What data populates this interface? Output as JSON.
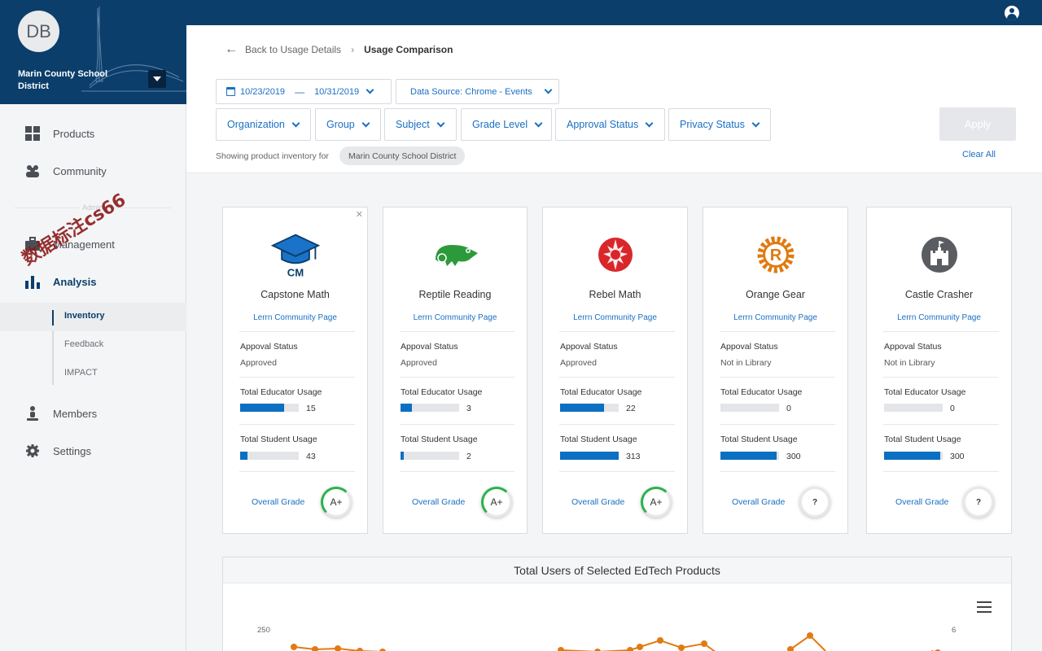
{
  "header": {
    "user_icon": "account-circle-icon"
  },
  "org": {
    "initials": "DB",
    "name": "Marin County School District"
  },
  "nav": {
    "products": "Products",
    "community": "Community",
    "admin": "Admin",
    "management": "Management",
    "analysis": "Analysis",
    "sub": {
      "inventory": "Inventory",
      "feedback": "Feedback",
      "impact": "IMPACT"
    },
    "members": "Members",
    "settings": "Settings"
  },
  "watermark": "数据标注cs66",
  "breadcrumb": {
    "back": "Back to Usage Details",
    "current": "Usage Comparison"
  },
  "filters": {
    "date_from": "10/23/2019",
    "date_to": "10/31/2019",
    "data_source": "Data Source: Chrome - Events",
    "organization": "Organization",
    "group": "Group",
    "subject": "Subject",
    "grade_level": "Grade Level",
    "approval_status": "Approval Status",
    "privacy_status": "Privacy Status",
    "apply": "Apply",
    "clear_all": "Clear All",
    "showing_label": "Showing product inventory for",
    "district_chip": "Marin County School District"
  },
  "card_labels": {
    "link": "Lerrn Community Page",
    "approval": "Appoval Status",
    "educator": "Total Educator Usage",
    "student": "Total Student Usage",
    "overall": "Overall Grade"
  },
  "products": [
    {
      "name": "Capstone Math",
      "approval": "Approved",
      "educator_usage": "15",
      "educator_pct": 0.75,
      "student_usage": "43",
      "student_pct": 0.12,
      "grade": "A+",
      "logo": "graduation-cap-icon"
    },
    {
      "name": "Reptile Reading",
      "approval": "Approved",
      "educator_usage": "3",
      "educator_pct": 0.2,
      "student_usage": "2",
      "student_pct": 0.05,
      "grade": "A+",
      "logo": "chameleon-icon"
    },
    {
      "name": "Rebel Math",
      "approval": "Approved",
      "educator_usage": "22",
      "educator_pct": 0.75,
      "student_usage": "313",
      "student_pct": 1.0,
      "grade": "A+",
      "logo": "rebel-emblem-icon"
    },
    {
      "name": "Orange Gear",
      "approval": "Not in Library",
      "educator_usage": "0",
      "educator_pct": 0,
      "student_usage": "300",
      "student_pct": 0.96,
      "grade": "?",
      "logo": "gear-r-icon"
    },
    {
      "name": "Castle Crasher",
      "approval": "Not in Library",
      "educator_usage": "0",
      "educator_pct": 0,
      "student_usage": "300",
      "student_pct": 0.96,
      "grade": "?",
      "logo": "castle-icon"
    }
  ],
  "chart": {
    "title": "Total Users of Selected EdTech Products",
    "y_left_top": "250",
    "y_right_top": "6",
    "menu_icon": "hamburger-menu-icon",
    "line_color": "#e07b12"
  }
}
